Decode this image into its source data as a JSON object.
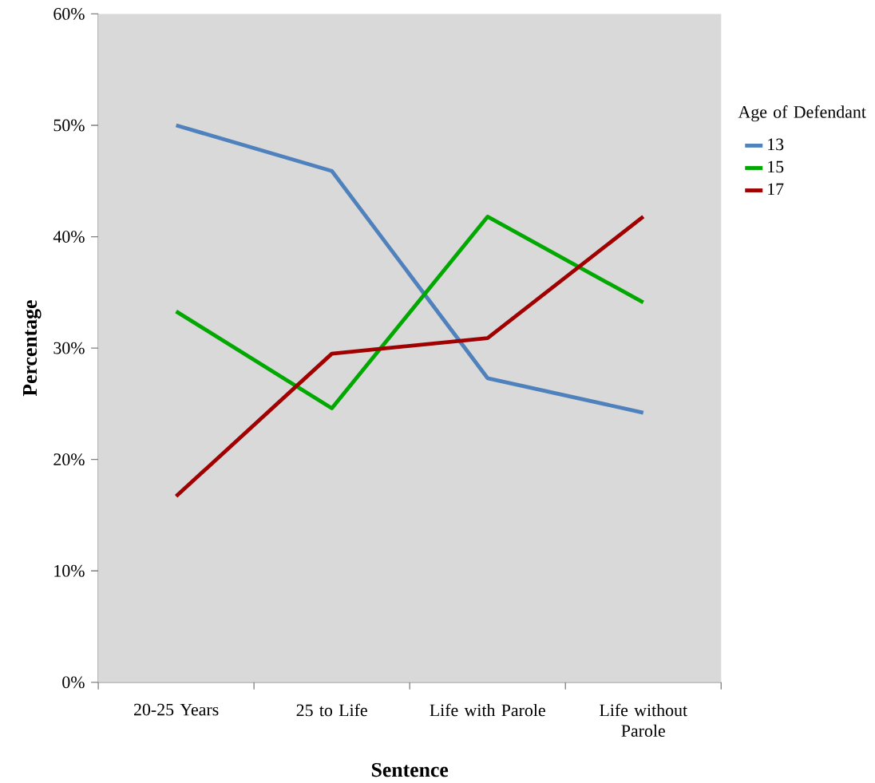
{
  "chart_data": {
    "type": "line",
    "xlabel": "Sentence",
    "ylabel": "Percentage",
    "legend_title": "Age of Defendant",
    "categories": [
      "20-25 Years",
      "25 to Life",
      "Life with Parole",
      "Life without Parole"
    ],
    "series": [
      {
        "name": "13",
        "color": "#4f81bd",
        "values": [
          50,
          45.9,
          27.3,
          24.2
        ]
      },
      {
        "name": "15",
        "color": "#00a800",
        "values": [
          33.3,
          24.6,
          41.8,
          34.1
        ]
      },
      {
        "name": "17",
        "color": "#a00000",
        "values": [
          16.7,
          29.5,
          30.9,
          41.8
        ]
      }
    ],
    "ylim": [
      0,
      60
    ],
    "yticks": [
      {
        "value": 0,
        "label": "0%"
      },
      {
        "value": 10,
        "label": "10%"
      },
      {
        "value": 20,
        "label": "20%"
      },
      {
        "value": 30,
        "label": "30%"
      },
      {
        "value": 40,
        "label": "40%"
      },
      {
        "value": 50,
        "label": "50%"
      },
      {
        "value": 60,
        "label": "60%"
      }
    ],
    "grid": false,
    "legend": "right",
    "marker": "none",
    "line_style": "solid"
  }
}
